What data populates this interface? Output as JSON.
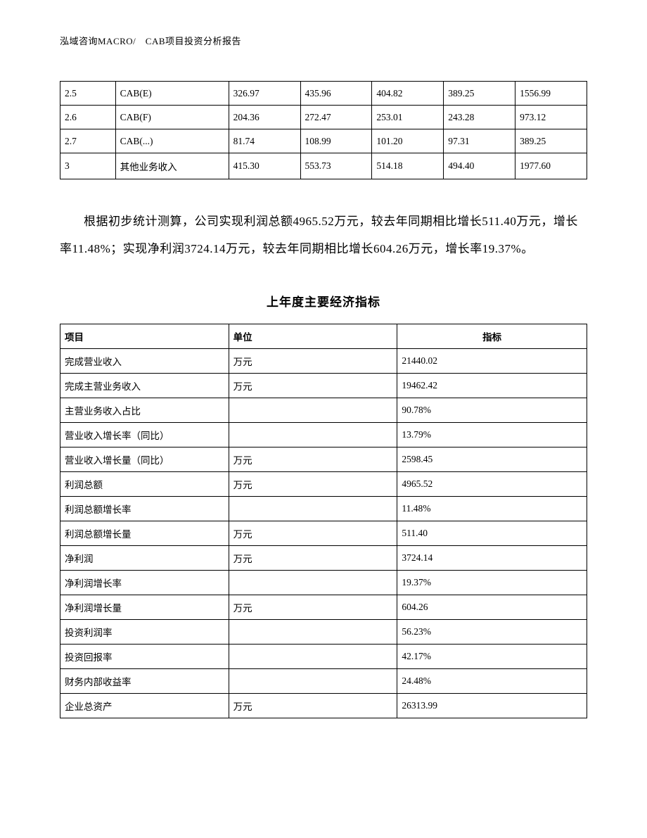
{
  "header": "泓域咨询MACRO/　CAB项目投资分析报告",
  "table1": {
    "col_widths": [
      "10.5%",
      "21.5%",
      "13.6%",
      "13.6%",
      "13.6%",
      "13.6%",
      "13.6%"
    ],
    "border_color": "#000000",
    "font_size": 13.5,
    "rows": [
      [
        "2.5",
        "CAB(E)",
        "326.97",
        "435.96",
        "404.82",
        "389.25",
        "1556.99"
      ],
      [
        "2.6",
        "CAB(F)",
        "204.36",
        "272.47",
        "253.01",
        "243.28",
        "973.12"
      ],
      [
        "2.7",
        "CAB(...)",
        "81.74",
        "108.99",
        "101.20",
        "97.31",
        "389.25"
      ],
      [
        "3",
        "其他业务收入",
        "415.30",
        "553.73",
        "514.18",
        "494.40",
        "1977.60"
      ]
    ]
  },
  "paragraph": "根据初步统计测算，公司实现利润总额4965.52万元，较去年同期相比增长511.40万元，增长率11.48%；实现净利润3724.14万元，较去年同期相比增长604.26万元，增长率19.37%。",
  "section_title": "上年度主要经济指标",
  "table2": {
    "col_widths": [
      "32%",
      "32%",
      "36%"
    ],
    "border_color": "#000000",
    "font_size": 13.5,
    "header": {
      "col1": "项目",
      "col2": "单位",
      "col3": "指标"
    },
    "rows": [
      [
        "完成营业收入",
        "万元",
        "21440.02"
      ],
      [
        "完成主营业务收入",
        "万元",
        "19462.42"
      ],
      [
        "主营业务收入占比",
        "",
        "90.78%"
      ],
      [
        "营业收入增长率（同比）",
        "",
        "13.79%"
      ],
      [
        "营业收入增长量（同比）",
        "万元",
        "2598.45"
      ],
      [
        "利润总额",
        "万元",
        "4965.52"
      ],
      [
        "利润总额增长率",
        "",
        "11.48%"
      ],
      [
        "利润总额增长量",
        "万元",
        "511.40"
      ],
      [
        "净利润",
        "万元",
        "3724.14"
      ],
      [
        "净利润增长率",
        "",
        "19.37%"
      ],
      [
        "净利润增长量",
        "万元",
        "604.26"
      ],
      [
        "投资利润率",
        "",
        "56.23%"
      ],
      [
        "投资回报率",
        "",
        "42.17%"
      ],
      [
        "财务内部收益率",
        "",
        "24.48%"
      ],
      [
        "企业总资产",
        "万元",
        "26313.99"
      ]
    ]
  },
  "colors": {
    "background": "#ffffff",
    "text": "#000000",
    "border": "#000000"
  },
  "typography": {
    "body_font": "SimSun",
    "header_font_size": 13,
    "paragraph_font_size": 17,
    "paragraph_line_height": 2.3,
    "section_title_font_size": 17,
    "section_title_weight": "bold",
    "table_font_size": 13.5
  }
}
